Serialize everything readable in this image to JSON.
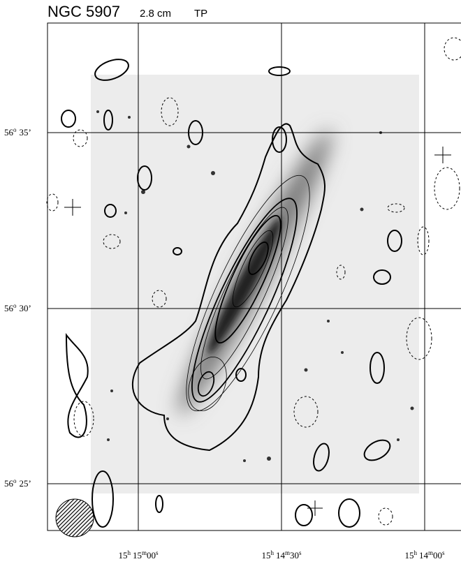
{
  "header": {
    "object": "NGC 5907",
    "wavelength": "2.8 cm",
    "mode": "TP"
  },
  "y_labels": [
    {
      "deg": "56",
      "sup": "o",
      "min": "35’"
    },
    {
      "deg": "56",
      "sup": "o",
      "min": "30’"
    },
    {
      "deg": "56",
      "sup": "o",
      "min": "25’"
    }
  ],
  "x_labels": [
    {
      "h": "15",
      "hs": "h",
      "m": "15",
      "ms": "m",
      "s": "00",
      "ss": "s"
    },
    {
      "h": "15",
      "hs": "h",
      "m": "14",
      "ms": "m",
      "s": "30",
      "ss": "s"
    },
    {
      "h": "15",
      "hs": "h",
      "m": "14",
      "ms": "m",
      "s": "00",
      "ss": "s"
    }
  ]
}
